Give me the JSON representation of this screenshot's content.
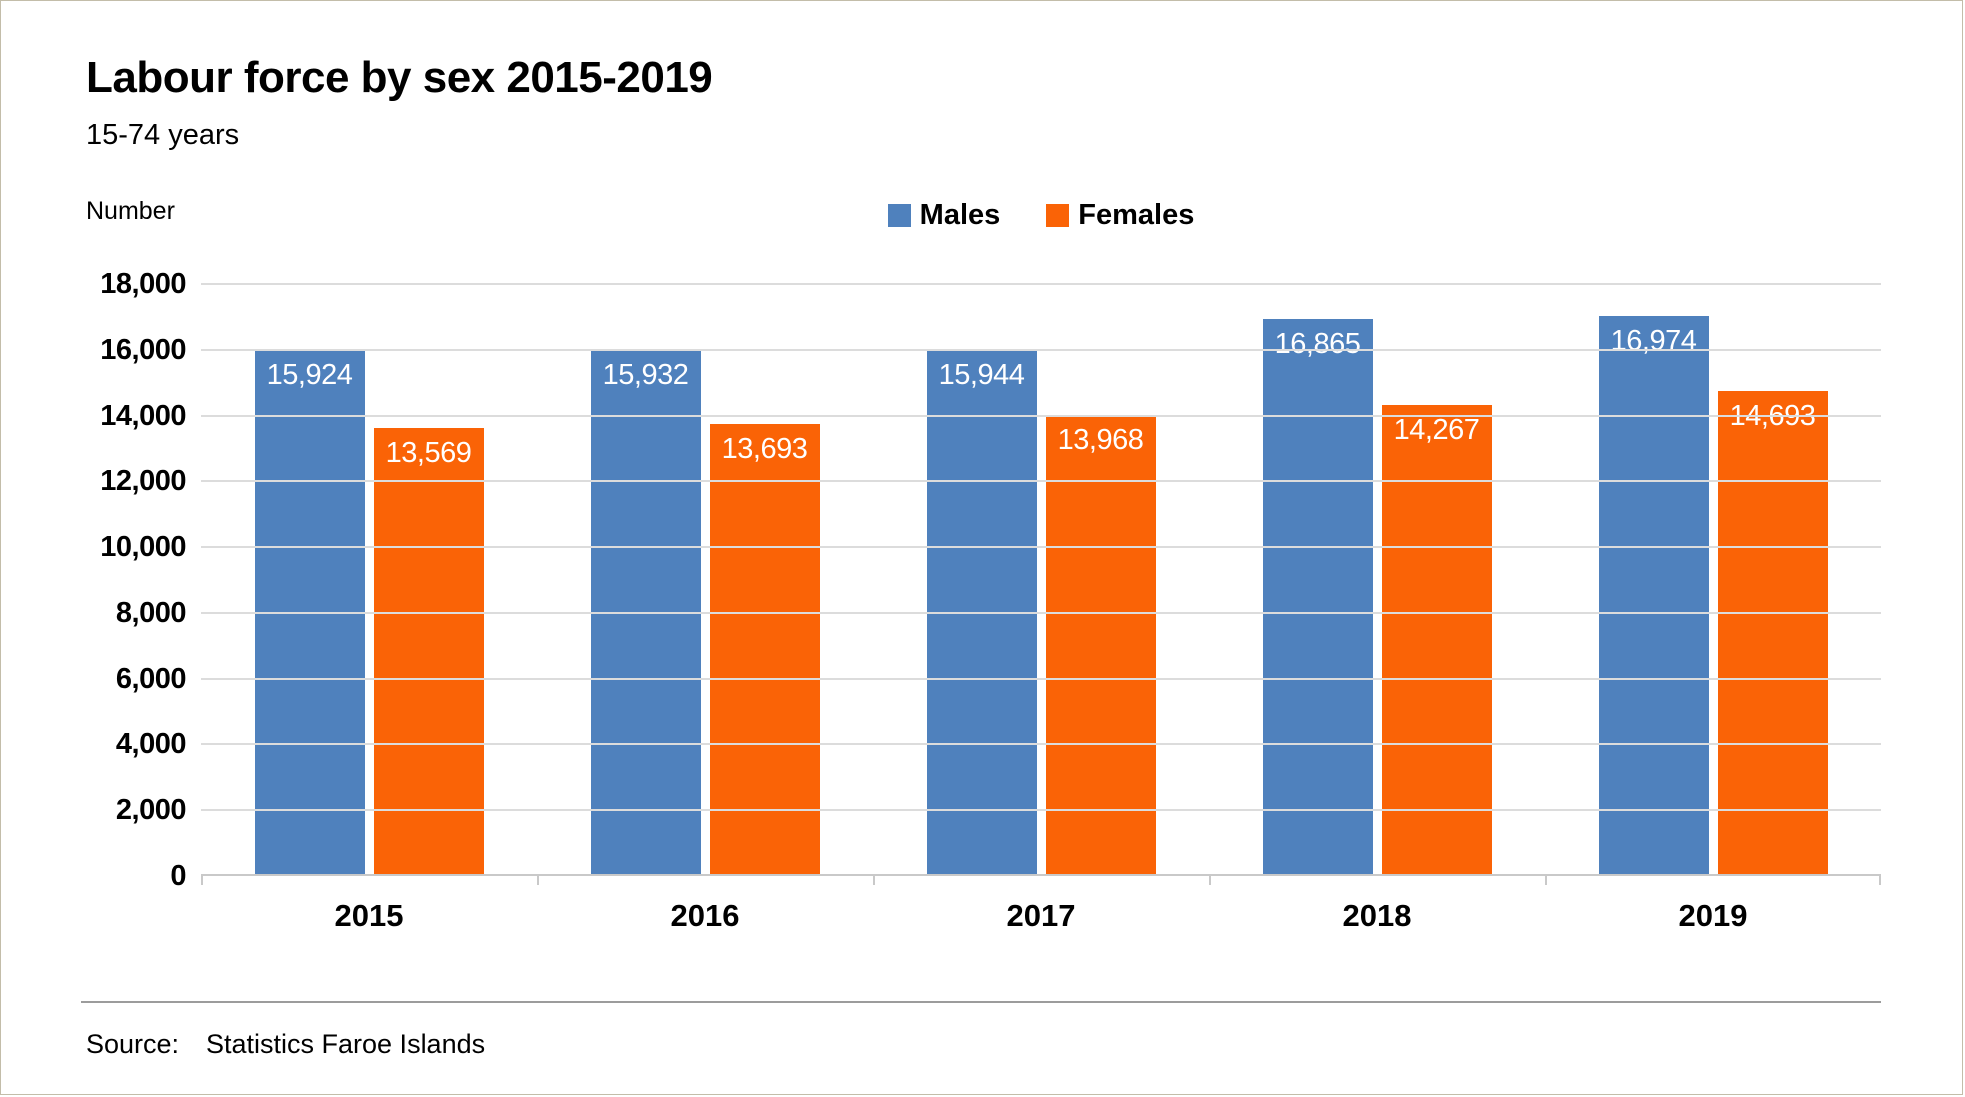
{
  "chart_data": {
    "type": "bar",
    "title": "Labour force by sex 2015-2019",
    "subtitle": "15-74 years",
    "ylabel": "Number",
    "categories": [
      "2015",
      "2016",
      "2017",
      "2018",
      "2019"
    ],
    "series": [
      {
        "name": "Males",
        "color": "#4F81BD",
        "values": [
          15924,
          15932,
          15944,
          16865,
          16974
        ],
        "value_labels": [
          "15,924",
          "15,932",
          "15,944",
          "16,865",
          "16,974"
        ]
      },
      {
        "name": "Females",
        "color": "#FA6306",
        "values": [
          13569,
          13693,
          13968,
          14267,
          14693
        ],
        "value_labels": [
          "13,569",
          "13,693",
          "13,968",
          "14,267",
          "14,693"
        ]
      }
    ],
    "ylim": [
      0,
      18000
    ],
    "yticks": {
      "values": [
        0,
        2000,
        4000,
        6000,
        8000,
        10000,
        12000,
        14000,
        16000,
        18000
      ],
      "labels": [
        "0",
        "2,000",
        "4,000",
        "6,000",
        "8,000",
        "10,000",
        "12,000",
        "14,000",
        "16,000",
        "18,000"
      ]
    },
    "grid": true,
    "legend_position": "top-center",
    "gridline_color": "#dcdcdc",
    "axis_color": "#c9c9c9"
  },
  "footer": {
    "source_label": "Source:",
    "source_value": "Statistics Faroe Islands"
  }
}
